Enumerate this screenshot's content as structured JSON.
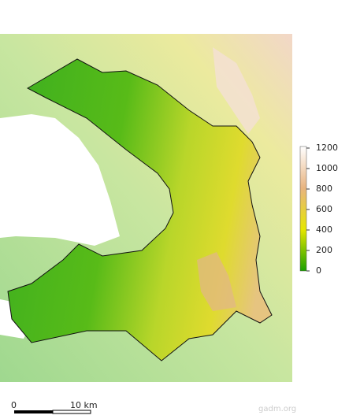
{
  "legend": {
    "ticks": [
      0,
      200,
      400,
      600,
      800,
      1000,
      1200
    ],
    "colors": [
      "#1aa000",
      "#e6e600",
      "#e8b480",
      "#ffffff"
    ]
  },
  "scale_bar": {
    "labels": [
      "0",
      "10 km"
    ]
  },
  "credit": "gadm.org"
}
